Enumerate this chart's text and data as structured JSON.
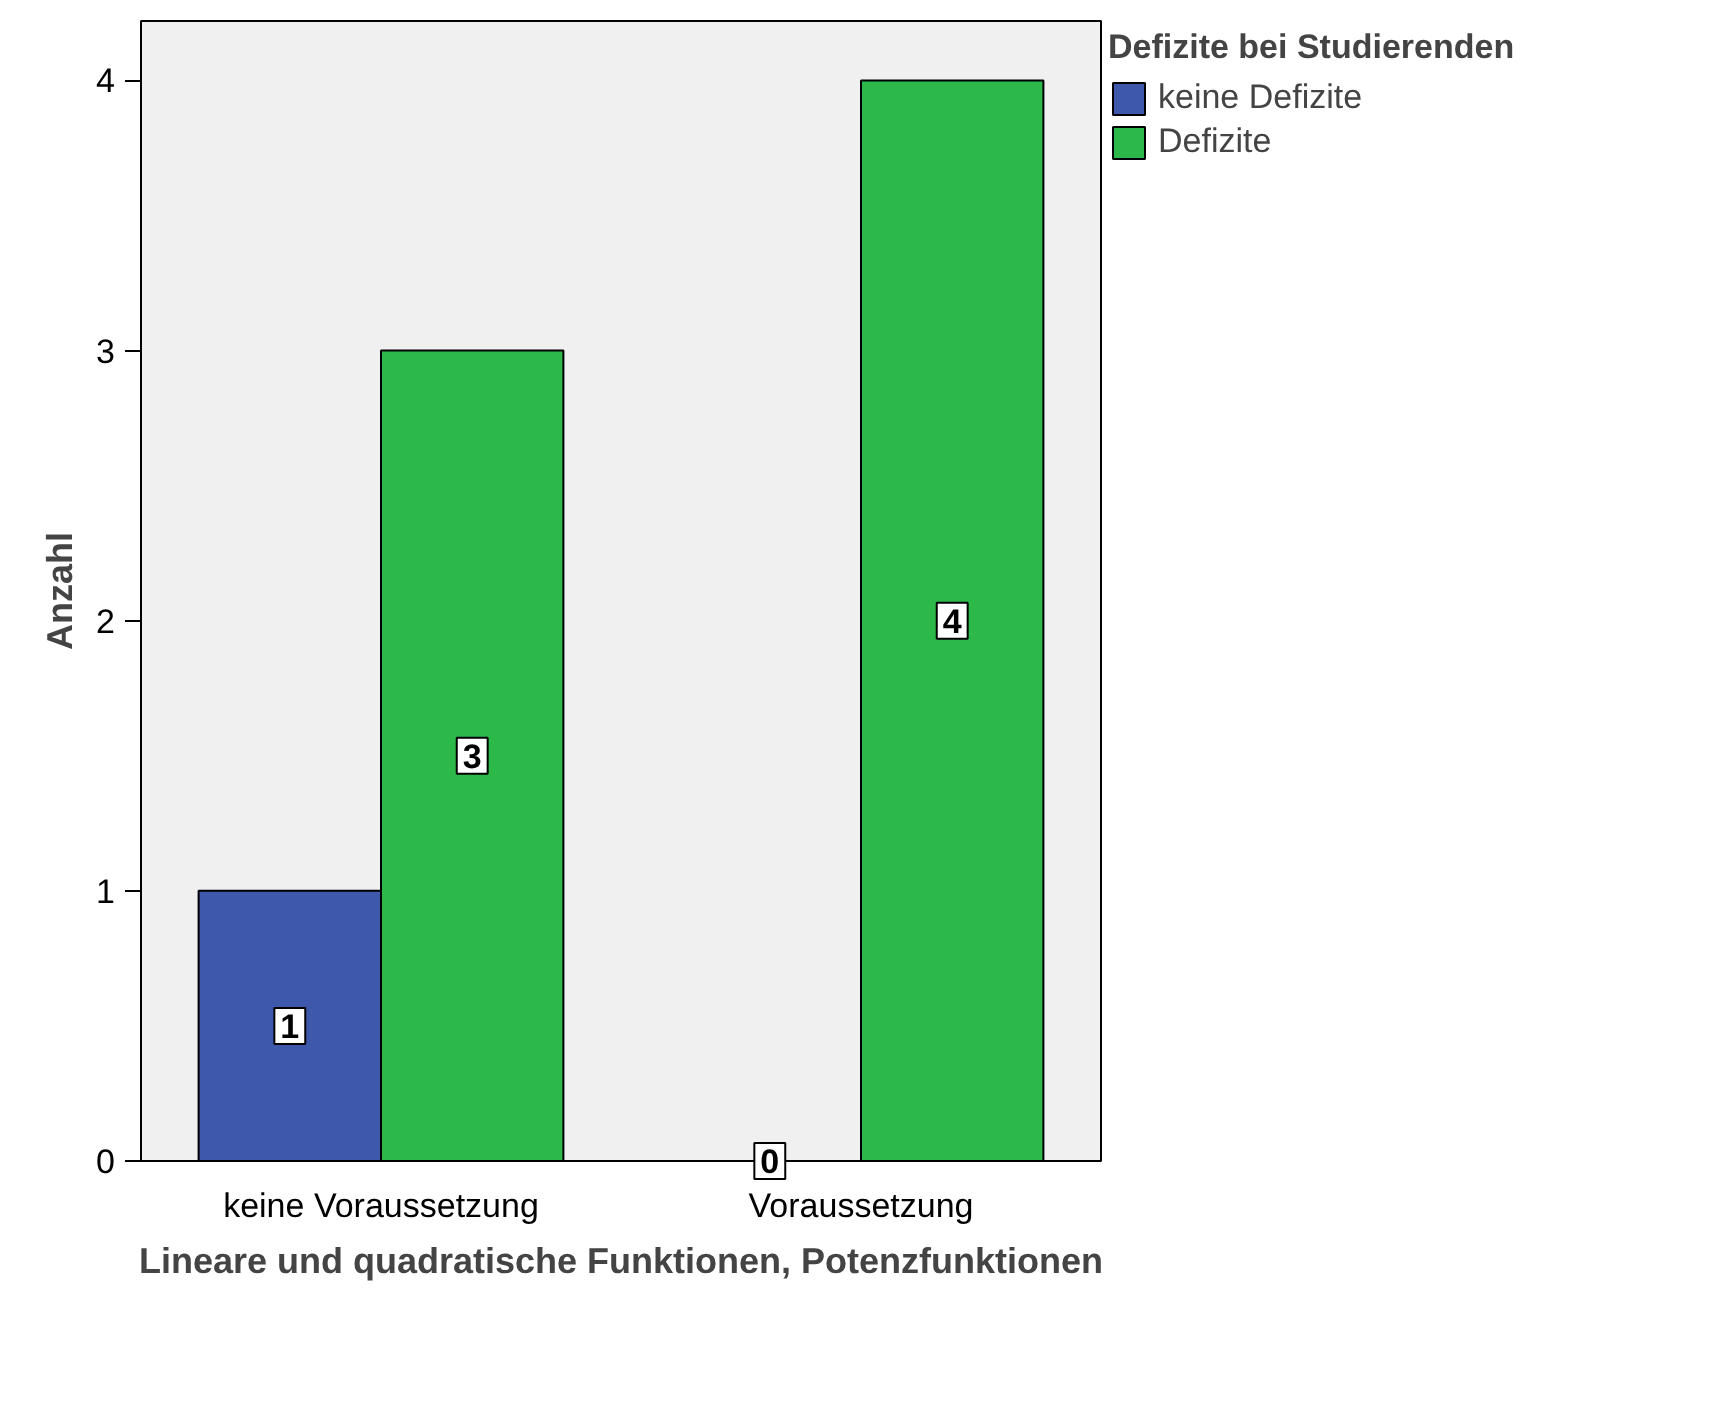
{
  "chart_data": {
    "type": "bar",
    "xlabel": "Lineare und quadratische Funktionen, Potenzfunktionen",
    "ylabel": "Anzahl",
    "legend_title": "Defizite bei Studierenden",
    "categories": [
      "keine Voraussetzung",
      "Voraussetzung"
    ],
    "series": [
      {
        "name": "keine Defizite",
        "color": "#3e58ac",
        "values": [
          1,
          0
        ]
      },
      {
        "name": "Defizite",
        "color": "#2db84a",
        "values": [
          3,
          4
        ]
      }
    ],
    "ylim": [
      0,
      4.22
    ],
    "yticks": [
      0,
      1,
      2,
      3,
      4
    ],
    "grid": false,
    "legend": "right",
    "data_labels": true
  }
}
